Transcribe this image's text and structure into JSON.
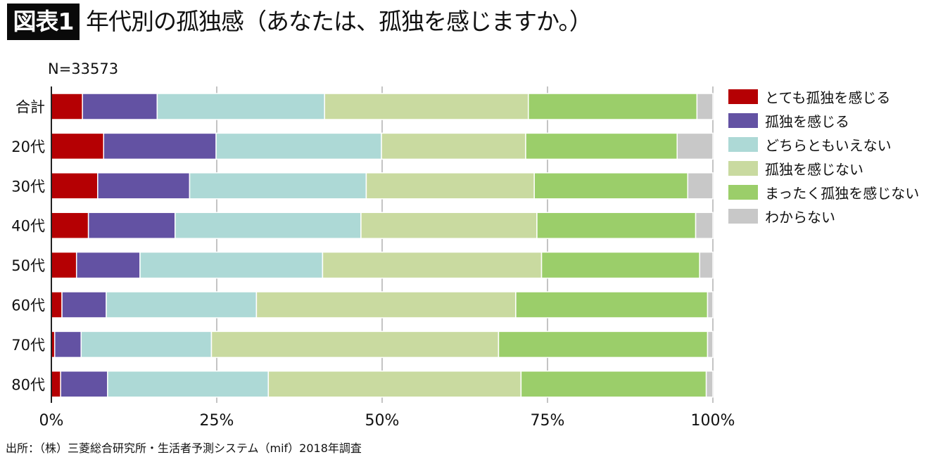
{
  "header": {
    "badge": "図表1",
    "title": "年代別の孤独感（あなたは、孤独を感じますか。）"
  },
  "sample_size": "N=33573",
  "source": "出所：（株）三菱総合研究所・生活者予測システム（mif）2018年調査",
  "chart_data": {
    "type": "bar",
    "orientation": "horizontal",
    "stacked": "percent",
    "title": "年代別の孤独感（あなたは、孤独を感じますか。）",
    "xlabel": "",
    "ylabel": "",
    "xlim": [
      0,
      100
    ],
    "x_ticks": [
      "0%",
      "25%",
      "50%",
      "75%",
      "100%"
    ],
    "x_tick_values": [
      0,
      25,
      50,
      75,
      100
    ],
    "grid": true,
    "legend_position": "right",
    "categories": [
      "合計",
      "20代",
      "30代",
      "40代",
      "50代",
      "60代",
      "70代",
      "80代"
    ],
    "series": [
      {
        "name": "とても孤独を感じる",
        "color": "#B50003",
        "values": [
          4.7,
          7.9,
          7.0,
          5.6,
          3.8,
          1.6,
          0.5,
          1.4
        ]
      },
      {
        "name": "孤独を感じる",
        "color": "#6352A3",
        "values": [
          11.3,
          17.0,
          13.9,
          13.1,
          9.6,
          6.7,
          4.0,
          7.1
        ]
      },
      {
        "name": "どちらともいえない",
        "color": "#ADD9D6",
        "values": [
          25.3,
          25.0,
          26.7,
          28.1,
          27.6,
          22.7,
          19.7,
          24.3
        ]
      },
      {
        "name": "孤独を感じない",
        "color": "#C9DAA0",
        "values": [
          30.8,
          21.8,
          25.4,
          26.6,
          33.1,
          39.2,
          43.4,
          38.2
        ]
      },
      {
        "name": "まったく孤独を感じない",
        "color": "#9BCE6A",
        "values": [
          25.5,
          22.9,
          23.2,
          24.0,
          23.9,
          29.0,
          31.6,
          28.0
        ]
      },
      {
        "name": "わからない",
        "color": "#C8C8C8",
        "values": [
          2.4,
          5.4,
          3.8,
          2.6,
          2.0,
          0.8,
          0.8,
          1.0
        ]
      }
    ]
  }
}
